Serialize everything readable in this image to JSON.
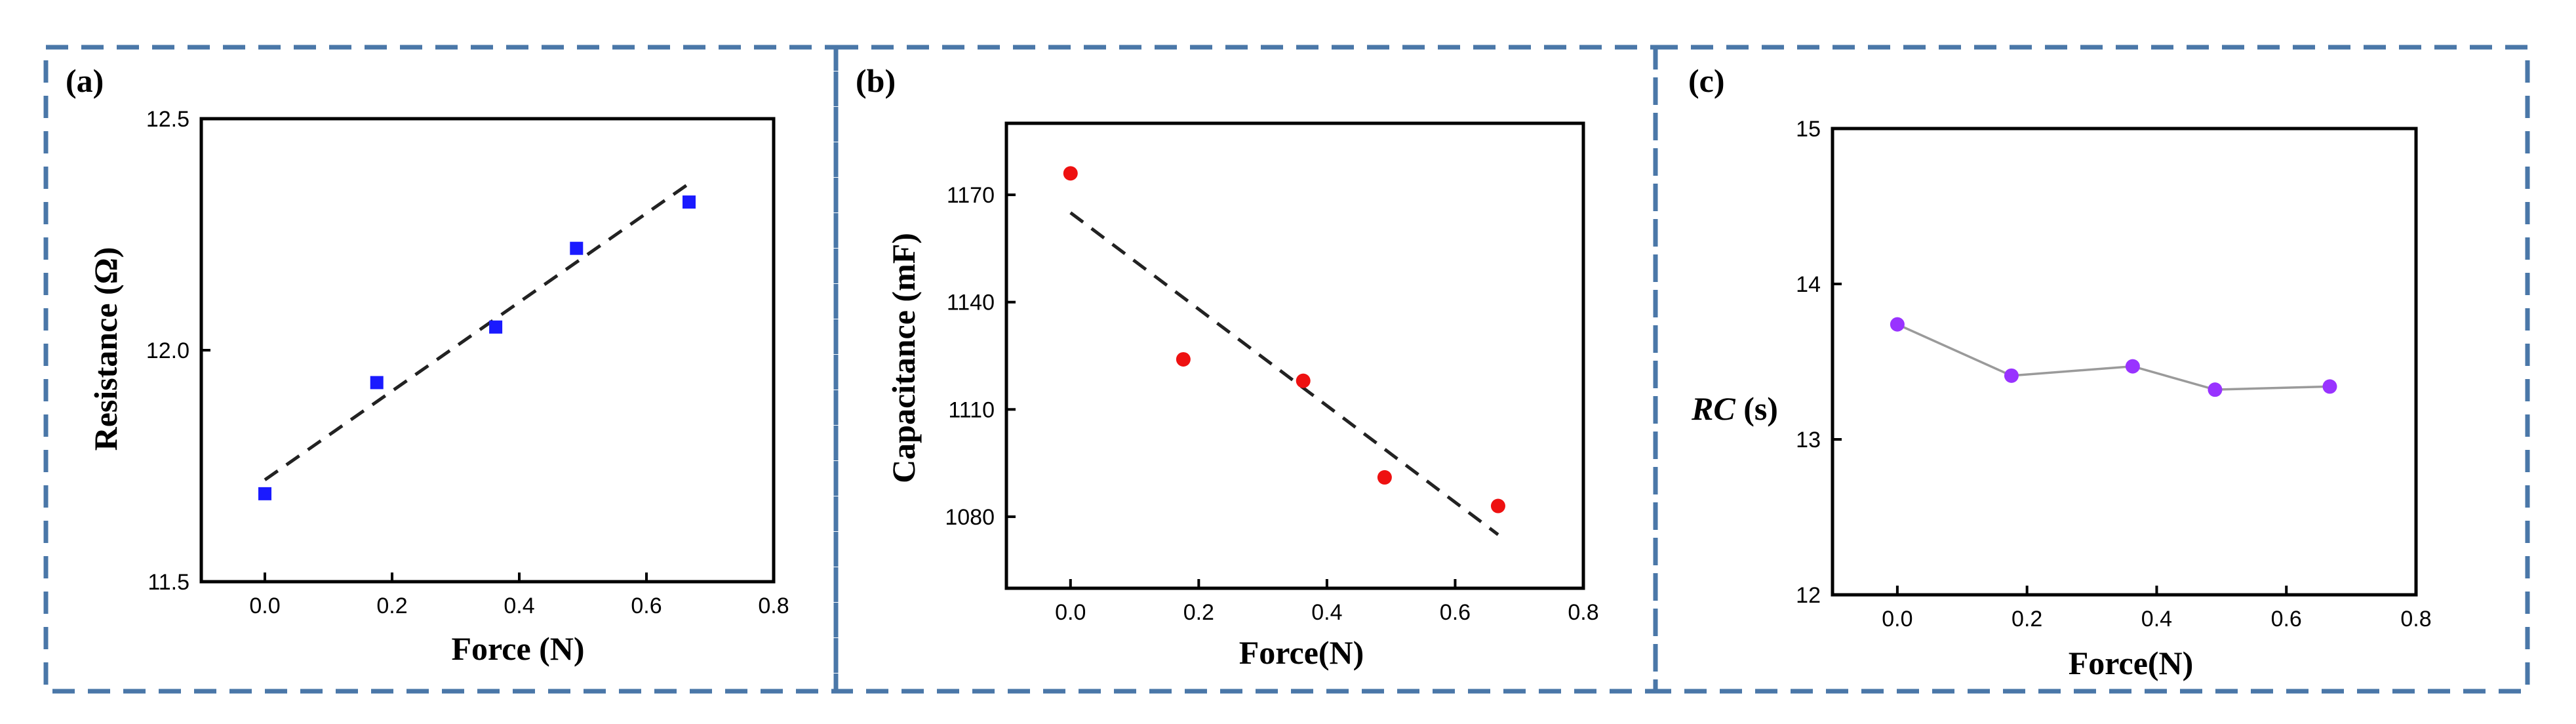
{
  "chart_data": [
    {
      "panel_label": "(a)",
      "type": "scatter",
      "marker": "square",
      "color": "#1a1aff",
      "xlabel": "Force (N)",
      "ylabel": "Resistance (Ω)",
      "xlim": [
        -0.1,
        0.8
      ],
      "ylim": [
        11.5,
        12.5
      ],
      "xticks": [
        "0.0",
        "0.2",
        "0.4",
        "0.6",
        "0.8"
      ],
      "yticks": [
        "11.5",
        "12.0",
        "12.5"
      ],
      "x": [
        0.0,
        0.176,
        0.363,
        0.49,
        0.667
      ],
      "y": [
        11.69,
        11.93,
        12.05,
        12.22,
        12.32
      ],
      "fit_line": {
        "style": "dashed",
        "x": [
          0.0,
          0.667
        ],
        "y": [
          11.72,
          12.36
        ]
      }
    },
    {
      "panel_label": "(b)",
      "type": "scatter",
      "marker": "circle",
      "color": "#ee1111",
      "xlabel": "Force(N)",
      "ylabel": "Capacitance (mF)",
      "xlim": [
        -0.1,
        0.8
      ],
      "ylim": [
        1060,
        1190
      ],
      "xticks": [
        "0.0",
        "0.2",
        "0.4",
        "0.6",
        "0.8"
      ],
      "yticks": [
        "1080",
        "1110",
        "1140",
        "1170"
      ],
      "x": [
        0.0,
        0.176,
        0.363,
        0.49,
        0.667
      ],
      "y": [
        1176,
        1124,
        1118,
        1091,
        1083
      ],
      "fit_line": {
        "style": "dashed",
        "x": [
          0.0,
          0.667
        ],
        "y": [
          1165,
          1075
        ]
      }
    },
    {
      "panel_label": "(c)",
      "type": "line",
      "marker": "circle",
      "color": "#9933ff",
      "xlabel": "Force(N)",
      "ylabel_italic": "RC",
      "ylabel_unit": " (s)",
      "xlim": [
        -0.1,
        0.8
      ],
      "ylim": [
        12,
        15
      ],
      "xticks": [
        "0.0",
        "0.2",
        "0.4",
        "0.6",
        "0.8"
      ],
      "yticks": [
        "12",
        "13",
        "14",
        "15"
      ],
      "x": [
        0.0,
        0.176,
        0.363,
        0.49,
        0.667
      ],
      "y": [
        13.74,
        13.41,
        13.47,
        13.32,
        13.34
      ]
    }
  ]
}
